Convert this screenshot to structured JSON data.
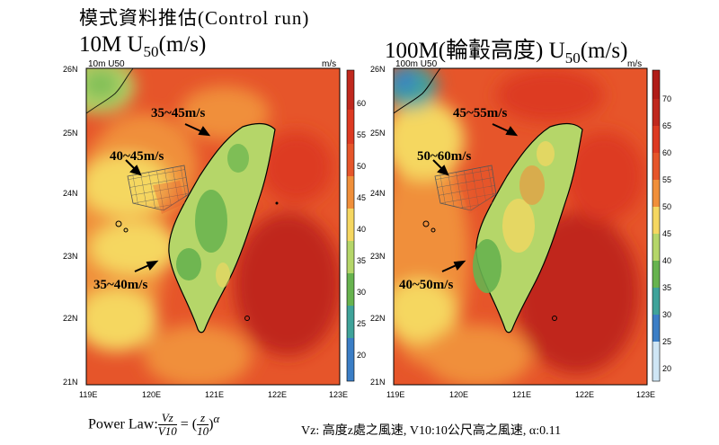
{
  "slide_title": "模式資料推估(Control run)",
  "panels": [
    {
      "title_main": "10M U",
      "title_sub": "50",
      "title_unit": "(m/s)",
      "plot_label": "10m U50",
      "unit_label": "m/s",
      "annotations": [
        "35~45m/s",
        "40~45m/s",
        "35~40m/s"
      ],
      "colorbar_ticks": [
        "60",
        "55",
        "50",
        "45",
        "40",
        "35",
        "30",
        "25",
        "20"
      ]
    },
    {
      "title_main": "100M(輪轂高度) U",
      "title_sub": "50",
      "title_unit": "(m/s)",
      "plot_label": "100m U50",
      "unit_label": "m/s",
      "annotations": [
        "45~55m/s",
        "50~60m/s",
        "40~50m/s"
      ],
      "colorbar_ticks": [
        "70",
        "65",
        "60",
        "55",
        "50",
        "45",
        "40",
        "35",
        "30",
        "25",
        "20"
      ]
    }
  ],
  "lat_labels": [
    "26N",
    "25N",
    "24N",
    "23N",
    "22N",
    "21N"
  ],
  "lon_labels": [
    "119E",
    "120E",
    "121E",
    "122E",
    "123E"
  ],
  "formula": {
    "prefix": "Power Law:",
    "lhs_num": "Vz",
    "lhs_den": "V10",
    "equals": "=",
    "rhs_num": "z",
    "rhs_den": "10",
    "exponent": "α",
    "note": "Vz: 高度z處之風速, V10:10公尺高之風速, α:0.11"
  },
  "colors": {
    "deep_red": "#c0281e",
    "red": "#dd3a22",
    "orange_red": "#e6552a",
    "orange": "#f08f3a",
    "yellow": "#f5d761",
    "light_green": "#b5d669",
    "green": "#67b34f",
    "teal": "#3fa39a",
    "blue": "#3b7ec6"
  }
}
